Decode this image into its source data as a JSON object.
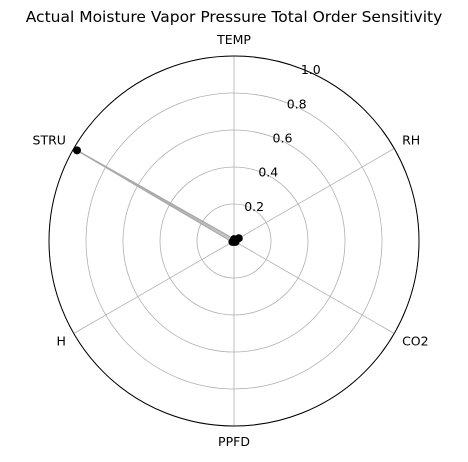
{
  "chart_data": {
    "type": "radar",
    "title": "Actual Moisture Vapor Pressure Total Order Sensitivity",
    "categories": [
      "TEMP",
      "RH",
      "CO2",
      "PPFD",
      "H",
      "STRU"
    ],
    "series": [
      {
        "values": [
          0.01,
          0.03,
          0.01,
          0.005,
          0.01,
          0.98
        ]
      }
    ],
    "rlim": [
      0,
      1.0
    ],
    "radial_ticks": [
      0.2,
      0.4,
      0.6,
      0.8,
      1.0
    ],
    "radial_tick_labels": [
      "0.2",
      "0.4",
      "0.6",
      "0.8",
      "1.0"
    ],
    "grid": true,
    "line_color": "#aaaaaa",
    "marker_color": "#000000"
  }
}
